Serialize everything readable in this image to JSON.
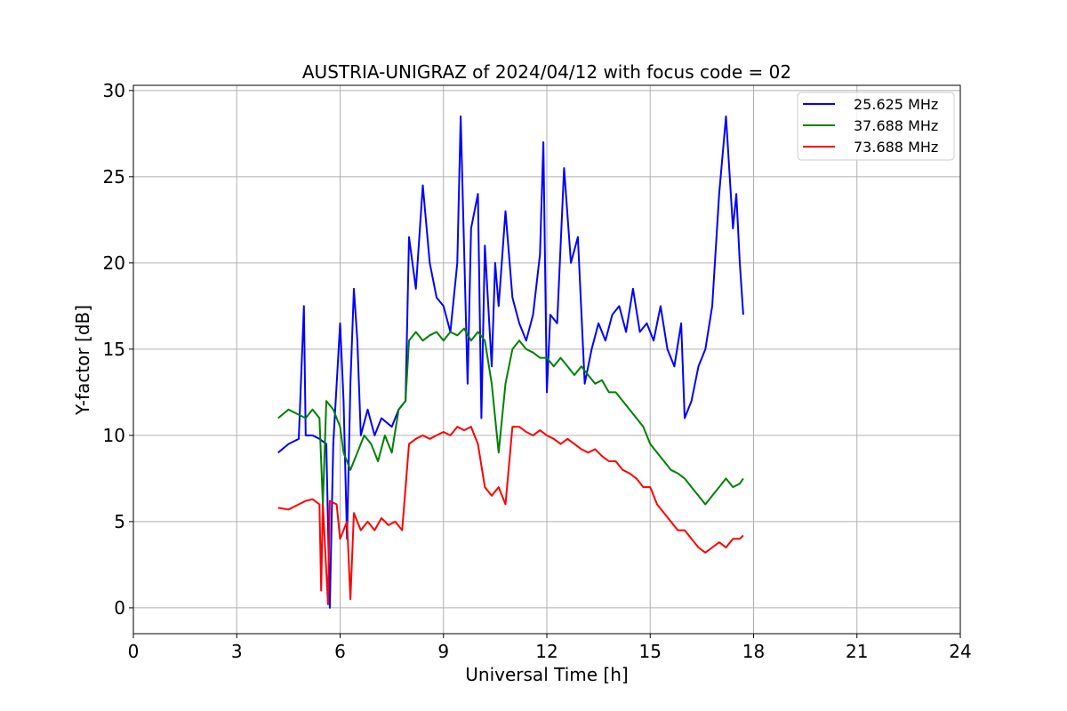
{
  "chart_data": {
    "type": "line",
    "title": "AUSTRIA-UNIGRAZ of 2024/04/12 with focus code = 02",
    "xlabel": "Universal Time [h]",
    "ylabel": "Y-factor [dB]",
    "xlim": [
      0,
      24
    ],
    "ylim": [
      -1.5,
      30.3
    ],
    "xticks": [
      0,
      3,
      6,
      9,
      12,
      15,
      18,
      21,
      24
    ],
    "yticks": [
      0,
      5,
      10,
      15,
      20,
      25,
      30
    ],
    "grid": true,
    "legend_position": "top-right",
    "series": [
      {
        "name": "25.625 MHz",
        "color": "#0000ff",
        "points": [
          [
            4.2,
            9.0
          ],
          [
            4.5,
            9.5
          ],
          [
            4.8,
            9.8
          ],
          [
            4.95,
            17.5
          ],
          [
            5.0,
            10.0
          ],
          [
            5.2,
            10.0
          ],
          [
            5.4,
            9.8
          ],
          [
            5.6,
            9.5
          ],
          [
            5.7,
            0.0
          ],
          [
            5.8,
            9.5
          ],
          [
            6.0,
            16.5
          ],
          [
            6.1,
            12.0
          ],
          [
            6.2,
            4.0
          ],
          [
            6.3,
            13.0
          ],
          [
            6.4,
            18.5
          ],
          [
            6.5,
            15.5
          ],
          [
            6.6,
            10.0
          ],
          [
            6.8,
            11.5
          ],
          [
            7.0,
            10.0
          ],
          [
            7.2,
            11.0
          ],
          [
            7.5,
            10.5
          ],
          [
            7.7,
            11.5
          ],
          [
            7.9,
            12.0
          ],
          [
            8.0,
            21.5
          ],
          [
            8.2,
            18.5
          ],
          [
            8.4,
            24.5
          ],
          [
            8.6,
            20.0
          ],
          [
            8.8,
            18.0
          ],
          [
            9.0,
            17.5
          ],
          [
            9.2,
            16.0
          ],
          [
            9.4,
            20.0
          ],
          [
            9.5,
            28.5
          ],
          [
            9.7,
            13.0
          ],
          [
            9.8,
            22.0
          ],
          [
            10.0,
            24.0
          ],
          [
            10.1,
            11.0
          ],
          [
            10.2,
            21.0
          ],
          [
            10.4,
            14.0
          ],
          [
            10.5,
            20.0
          ],
          [
            10.6,
            17.5
          ],
          [
            10.8,
            23.0
          ],
          [
            11.0,
            18.0
          ],
          [
            11.2,
            16.5
          ],
          [
            11.4,
            15.5
          ],
          [
            11.6,
            17.0
          ],
          [
            11.8,
            20.5
          ],
          [
            11.9,
            27.0
          ],
          [
            12.0,
            12.5
          ],
          [
            12.1,
            17.0
          ],
          [
            12.3,
            16.5
          ],
          [
            12.5,
            25.5
          ],
          [
            12.7,
            20.0
          ],
          [
            12.9,
            21.5
          ],
          [
            13.1,
            13.0
          ],
          [
            13.3,
            15.0
          ],
          [
            13.5,
            16.5
          ],
          [
            13.7,
            15.5
          ],
          [
            13.9,
            17.0
          ],
          [
            14.1,
            17.5
          ],
          [
            14.3,
            16.0
          ],
          [
            14.5,
            18.5
          ],
          [
            14.7,
            16.0
          ],
          [
            14.9,
            16.5
          ],
          [
            15.1,
            15.5
          ],
          [
            15.3,
            17.5
          ],
          [
            15.5,
            15.0
          ],
          [
            15.7,
            14.0
          ],
          [
            15.9,
            16.5
          ],
          [
            16.0,
            11.0
          ],
          [
            16.2,
            12.0
          ],
          [
            16.4,
            14.0
          ],
          [
            16.6,
            15.0
          ],
          [
            16.8,
            17.5
          ],
          [
            17.0,
            24.0
          ],
          [
            17.2,
            28.5
          ],
          [
            17.4,
            22.0
          ],
          [
            17.5,
            24.0
          ],
          [
            17.6,
            20.0
          ],
          [
            17.7,
            17.0
          ]
        ]
      },
      {
        "name": "37.688 MHz",
        "color": "#008000",
        "points": [
          [
            4.2,
            11.0
          ],
          [
            4.5,
            11.5
          ],
          [
            4.8,
            11.2
          ],
          [
            5.0,
            11.0
          ],
          [
            5.2,
            11.5
          ],
          [
            5.4,
            11.0
          ],
          [
            5.5,
            6.0
          ],
          [
            5.6,
            12.0
          ],
          [
            5.8,
            11.5
          ],
          [
            6.0,
            10.5
          ],
          [
            6.1,
            9.0
          ],
          [
            6.3,
            8.0
          ],
          [
            6.5,
            9.0
          ],
          [
            6.7,
            10.0
          ],
          [
            6.9,
            9.5
          ],
          [
            7.1,
            8.5
          ],
          [
            7.3,
            10.0
          ],
          [
            7.5,
            9.0
          ],
          [
            7.7,
            11.5
          ],
          [
            7.9,
            12.0
          ],
          [
            8.0,
            15.5
          ],
          [
            8.2,
            16.0
          ],
          [
            8.4,
            15.5
          ],
          [
            8.6,
            15.8
          ],
          [
            8.8,
            16.0
          ],
          [
            9.0,
            15.5
          ],
          [
            9.2,
            16.0
          ],
          [
            9.4,
            15.8
          ],
          [
            9.6,
            16.2
          ],
          [
            9.8,
            15.5
          ],
          [
            10.0,
            16.0
          ],
          [
            10.2,
            15.5
          ],
          [
            10.4,
            13.0
          ],
          [
            10.6,
            9.0
          ],
          [
            10.8,
            13.0
          ],
          [
            11.0,
            15.0
          ],
          [
            11.2,
            15.5
          ],
          [
            11.4,
            15.0
          ],
          [
            11.6,
            14.8
          ],
          [
            11.8,
            14.5
          ],
          [
            12.0,
            14.5
          ],
          [
            12.2,
            14.0
          ],
          [
            12.4,
            14.5
          ],
          [
            12.6,
            14.0
          ],
          [
            12.8,
            13.5
          ],
          [
            13.0,
            14.0
          ],
          [
            13.2,
            13.5
          ],
          [
            13.4,
            13.0
          ],
          [
            13.6,
            13.2
          ],
          [
            13.8,
            12.5
          ],
          [
            14.0,
            12.5
          ],
          [
            14.2,
            12.0
          ],
          [
            14.4,
            11.5
          ],
          [
            14.6,
            11.0
          ],
          [
            14.8,
            10.5
          ],
          [
            15.0,
            9.5
          ],
          [
            15.2,
            9.0
          ],
          [
            15.4,
            8.5
          ],
          [
            15.6,
            8.0
          ],
          [
            15.8,
            7.8
          ],
          [
            16.0,
            7.5
          ],
          [
            16.2,
            7.0
          ],
          [
            16.4,
            6.5
          ],
          [
            16.6,
            6.0
          ],
          [
            16.8,
            6.5
          ],
          [
            17.0,
            7.0
          ],
          [
            17.2,
            7.5
          ],
          [
            17.4,
            7.0
          ],
          [
            17.6,
            7.2
          ],
          [
            17.7,
            7.5
          ]
        ]
      },
      {
        "name": "73.688 MHz",
        "color": "#ff0000",
        "points": [
          [
            4.2,
            5.8
          ],
          [
            4.5,
            5.7
          ],
          [
            4.8,
            6.0
          ],
          [
            5.0,
            6.2
          ],
          [
            5.2,
            6.3
          ],
          [
            5.4,
            6.0
          ],
          [
            5.45,
            1.0
          ],
          [
            5.5,
            6.0
          ],
          [
            5.65,
            0.2
          ],
          [
            5.7,
            6.2
          ],
          [
            5.9,
            6.0
          ],
          [
            6.0,
            4.0
          ],
          [
            6.2,
            5.0
          ],
          [
            6.3,
            0.5
          ],
          [
            6.4,
            5.5
          ],
          [
            6.6,
            4.5
          ],
          [
            6.8,
            5.0
          ],
          [
            7.0,
            4.5
          ],
          [
            7.2,
            5.2
          ],
          [
            7.4,
            4.8
          ],
          [
            7.6,
            5.0
          ],
          [
            7.8,
            4.5
          ],
          [
            8.0,
            9.5
          ],
          [
            8.2,
            9.8
          ],
          [
            8.4,
            10.0
          ],
          [
            8.6,
            9.8
          ],
          [
            8.8,
            10.0
          ],
          [
            9.0,
            10.2
          ],
          [
            9.2,
            10.0
          ],
          [
            9.4,
            10.5
          ],
          [
            9.6,
            10.3
          ],
          [
            9.8,
            10.5
          ],
          [
            10.0,
            9.5
          ],
          [
            10.2,
            7.0
          ],
          [
            10.4,
            6.5
          ],
          [
            10.6,
            7.0
          ],
          [
            10.8,
            6.0
          ],
          [
            11.0,
            10.5
          ],
          [
            11.2,
            10.5
          ],
          [
            11.4,
            10.2
          ],
          [
            11.6,
            10.0
          ],
          [
            11.8,
            10.3
          ],
          [
            12.0,
            10.0
          ],
          [
            12.2,
            9.8
          ],
          [
            12.4,
            9.5
          ],
          [
            12.6,
            9.8
          ],
          [
            12.8,
            9.5
          ],
          [
            13.0,
            9.2
          ],
          [
            13.2,
            9.0
          ],
          [
            13.4,
            9.2
          ],
          [
            13.6,
            8.8
          ],
          [
            13.8,
            8.5
          ],
          [
            14.0,
            8.5
          ],
          [
            14.2,
            8.0
          ],
          [
            14.4,
            7.8
          ],
          [
            14.6,
            7.5
          ],
          [
            14.8,
            7.0
          ],
          [
            15.0,
            7.0
          ],
          [
            15.2,
            6.0
          ],
          [
            15.4,
            5.5
          ],
          [
            15.6,
            5.0
          ],
          [
            15.8,
            4.5
          ],
          [
            16.0,
            4.5
          ],
          [
            16.2,
            4.0
          ],
          [
            16.4,
            3.5
          ],
          [
            16.6,
            3.2
          ],
          [
            16.8,
            3.5
          ],
          [
            17.0,
            3.8
          ],
          [
            17.2,
            3.5
          ],
          [
            17.4,
            4.0
          ],
          [
            17.6,
            4.0
          ],
          [
            17.7,
            4.2
          ]
        ]
      }
    ]
  }
}
